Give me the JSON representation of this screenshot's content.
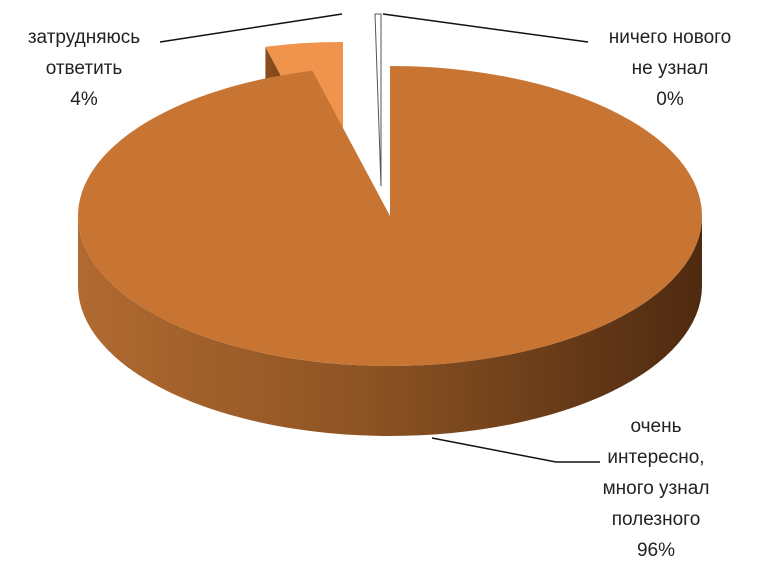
{
  "chart_data": {
    "type": "pie",
    "style": "3d-exploded",
    "slices": [
      {
        "label_lines": [
          "очень",
          "интересно,",
          "много узнал",
          "полезного"
        ],
        "percent_text": "96%",
        "value": 96,
        "color": "#c87533"
      },
      {
        "label_lines": [
          "затрудняюсь",
          "ответить"
        ],
        "percent_text": "4%",
        "value": 4,
        "color": "#f0944d"
      },
      {
        "label_lines": [
          "ничего нового",
          "не узнал"
        ],
        "percent_text": "0%",
        "value": 0,
        "color": "#ffffff"
      }
    ]
  }
}
